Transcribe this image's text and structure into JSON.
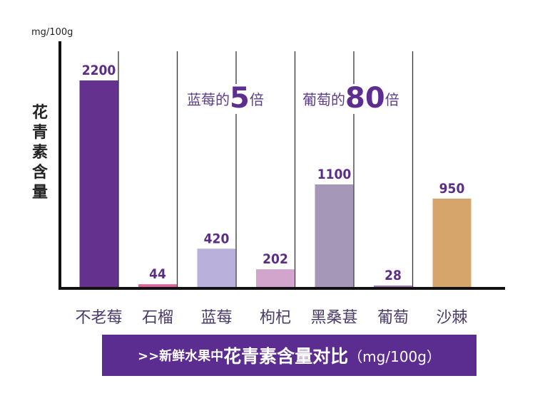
{
  "chart_data": {
    "type": "bar",
    "title": ">>新鲜水果中花青素含量对比（mg/100g）",
    "title_parts": {
      "prefix": ">>新鲜水果中",
      "main": "花青素含量对比",
      "unit": "（mg/100g）"
    },
    "ylabel": "花青素含量",
    "yunit": "mg/100g",
    "categories": [
      "不老莓",
      "石榴",
      "蓝莓",
      "枸杞",
      "黑桑葚",
      "葡萄",
      "沙棘"
    ],
    "values": [
      2200,
      44,
      420,
      202,
      1100,
      28,
      950
    ],
    "data_labels": [
      "2200",
      "44",
      "420",
      "202",
      "1100",
      "28",
      "950"
    ],
    "colors": [
      "#65318f",
      "#e0649a",
      "#b9b0dc",
      "#d2a6cc",
      "#a497b7",
      "#a77bc1",
      "#d6a56b"
    ],
    "ylim": [
      0,
      2200
    ],
    "grid": false,
    "annotations": [
      {
        "pre": "蓝莓的",
        "num": "5",
        "post": "倍"
      },
      {
        "pre": "葡萄的",
        "num": "80",
        "post": "倍"
      }
    ]
  }
}
